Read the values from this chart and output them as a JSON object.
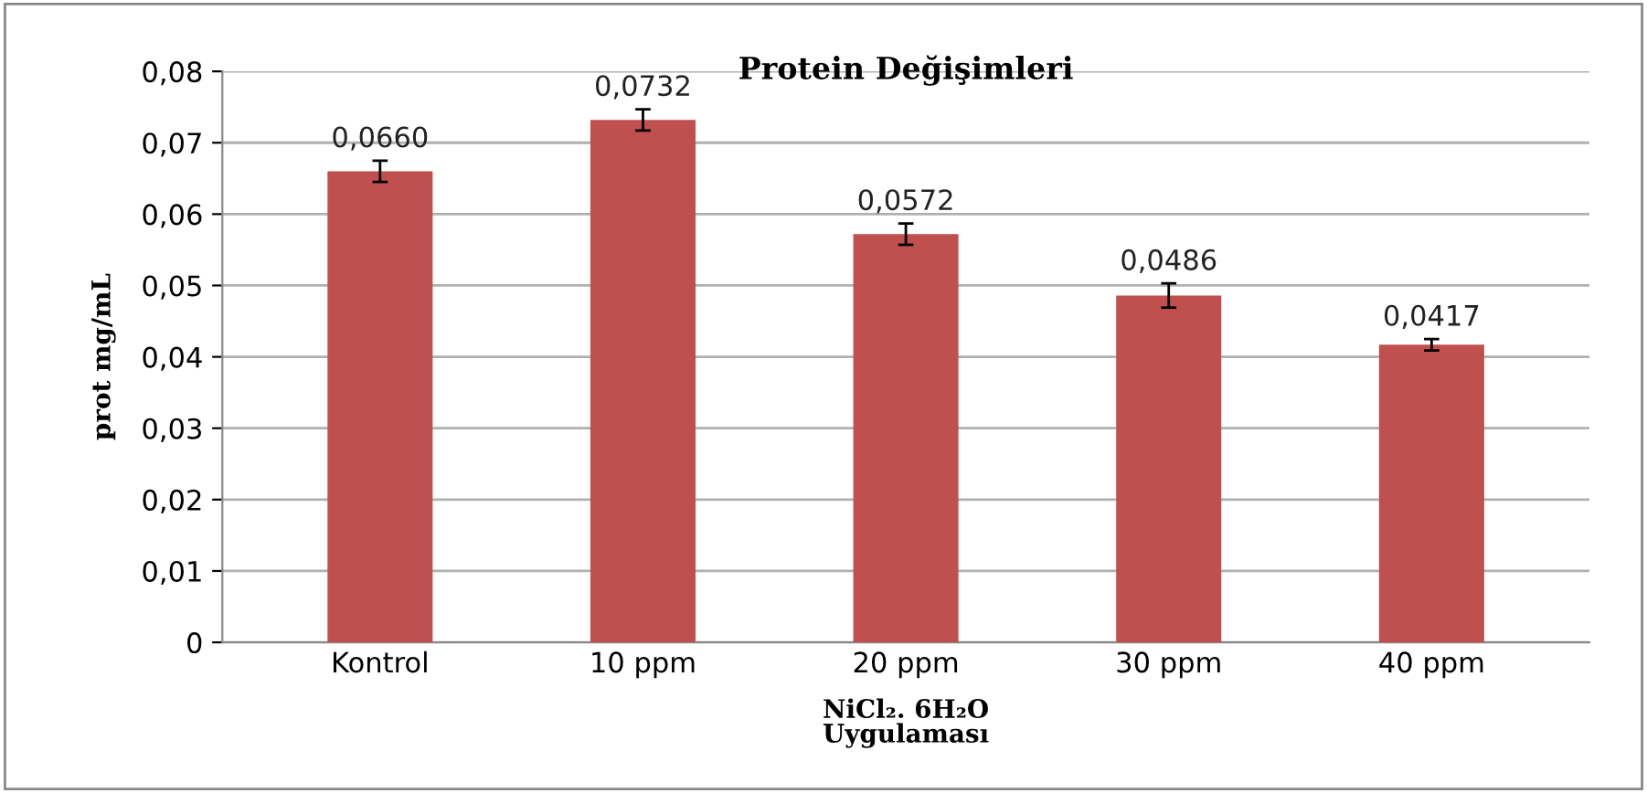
{
  "chart_data": {
    "type": "bar",
    "title": "Protein Değişimleri",
    "xlabel": "NiCl₂. 6H₂O\nUygulaması",
    "ylabel": "prot mg/mL",
    "categories": [
      "Kontrol",
      "10 ppm",
      "20 ppm",
      "30 ppm",
      "40 ppm"
    ],
    "values": [
      0.066,
      0.0732,
      0.0572,
      0.0486,
      0.0417
    ],
    "errors": [
      0.0015,
      0.0015,
      0.0015,
      0.0017,
      0.0008
    ],
    "value_labels": [
      "0,0660",
      "0,0732",
      "0,0572",
      "0,0486",
      "0,0417"
    ],
    "color": "#c0504d",
    "ylim": [
      0,
      0.08
    ],
    "yticks": [
      0,
      {
        "value": 0.01,
        "label": "0,01"
      },
      {
        "value": 0.02,
        "label": "0,02"
      },
      {
        "value": 0.03,
        "label": "0,03"
      },
      {
        "value": 0.04,
        "label": "0,04"
      },
      {
        "value": 0.05,
        "label": "0,05"
      },
      {
        "value": 0.06,
        "label": "0,06"
      },
      {
        "value": 0.07,
        "label": "0,07"
      },
      {
        "value": 0.08,
        "label": "0,08"
      }
    ],
    "grid": "y"
  }
}
